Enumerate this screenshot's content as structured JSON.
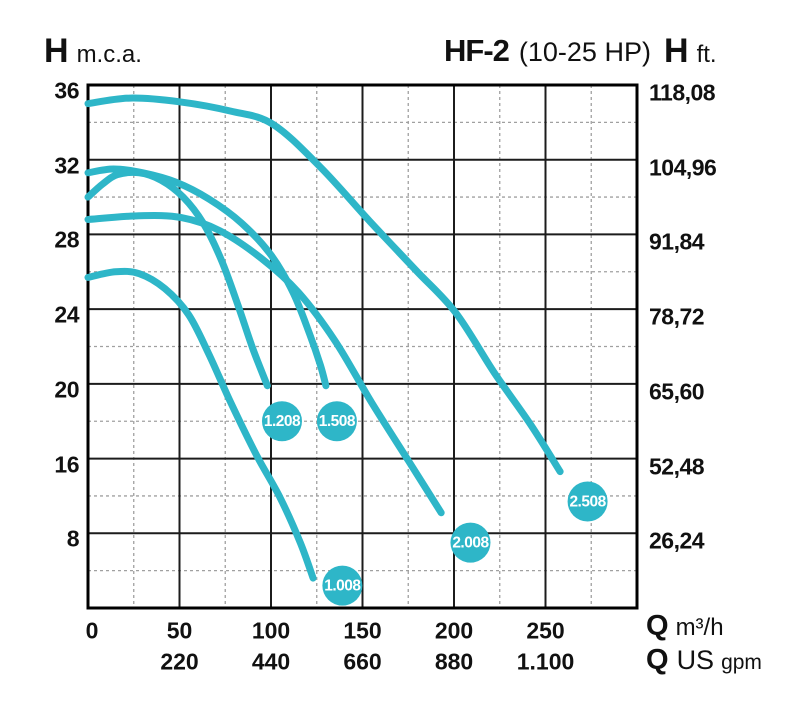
{
  "header": {
    "left_axis": {
      "symbol": "H",
      "unit": "m.c.a."
    },
    "title": {
      "model": "HF-2",
      "power": "(10-25 HP)"
    },
    "right_axis": {
      "symbol": "H",
      "unit": "ft."
    }
  },
  "footer": {
    "flow_m3h": {
      "symbol": "Q",
      "unit": "m³/h"
    },
    "flow_gpm": {
      "symbol": "Q",
      "unit_big": "US",
      "unit_small": "gpm"
    }
  },
  "colors": {
    "curve": "#2eb6c8",
    "bubble_fill": "#2eb6c8",
    "bubble_text": "#ffffff",
    "grid_major": "#1c1c1c",
    "grid_minor": "#a0a0a0",
    "border": "#000000",
    "text": "#111111",
    "background": "#ffffff"
  },
  "chart_data": {
    "type": "line",
    "title": "HF-2 (10-25 HP)",
    "x_axis": {
      "label": "Q m³/h",
      "min": 0,
      "max": 300,
      "major_step": 50,
      "minor_step": 25,
      "tick_values": [
        0,
        50,
        100,
        150,
        200,
        250
      ],
      "tick_labels": [
        "0",
        "50",
        "100",
        "150",
        "200",
        "250"
      ]
    },
    "x_axis_secondary": {
      "label": "Q US gpm",
      "tick_labels": [
        "220",
        "440",
        "660",
        "880",
        "1.100"
      ],
      "at_m3h": [
        50,
        100,
        150,
        200,
        250
      ]
    },
    "y_axis_left": {
      "label": "H m.c.a.",
      "top_value": 36,
      "bottom_value": 8,
      "rows": 7,
      "tick_labels": [
        "36",
        "32",
        "28",
        "24",
        "20",
        "16",
        "8"
      ]
    },
    "y_axis_right": {
      "label": "H ft.",
      "tick_labels": [
        "118,08",
        "104,96",
        "91,84",
        "78,72",
        "65,60",
        "52,48",
        "26,24"
      ]
    },
    "grid": {
      "legend": "off",
      "minor_style": "dashed"
    },
    "series": [
      {
        "name": "1.208",
        "bubble": {
          "q": 106,
          "h": 18.0
        },
        "points": [
          [
            0,
            30.0
          ],
          [
            8,
            30.7
          ],
          [
            16,
            31.2
          ],
          [
            28,
            31.3
          ],
          [
            40,
            30.9
          ],
          [
            52,
            30.0
          ],
          [
            63,
            28.6
          ],
          [
            73,
            26.6
          ],
          [
            82,
            24.2
          ],
          [
            90,
            21.9
          ],
          [
            98,
            19.9
          ]
        ]
      },
      {
        "name": "1.508",
        "bubble": {
          "q": 136,
          "h": 18.0
        },
        "points": [
          [
            0,
            31.3
          ],
          [
            14,
            31.5
          ],
          [
            30,
            31.3
          ],
          [
            48,
            30.8
          ],
          [
            66,
            29.9
          ],
          [
            84,
            28.6
          ],
          [
            100,
            26.9
          ],
          [
            112,
            24.9
          ],
          [
            121,
            22.7
          ],
          [
            127,
            21.0
          ],
          [
            130,
            19.9
          ]
        ]
      },
      {
        "name": "1.008",
        "bubble": {
          "q": 139,
          "h": 9.2
        },
        "points": [
          [
            0,
            25.7
          ],
          [
            15,
            26.0
          ],
          [
            28,
            25.9
          ],
          [
            42,
            25.1
          ],
          [
            55,
            23.7
          ],
          [
            66,
            21.6
          ],
          [
            78,
            19.0
          ],
          [
            92,
            16.2
          ],
          [
            105,
            13.9
          ],
          [
            116,
            11.5
          ],
          [
            123,
            9.6
          ]
        ]
      },
      {
        "name": "2.008",
        "bubble": {
          "q": 209,
          "h": 11.5
        },
        "points": [
          [
            0,
            28.8
          ],
          [
            28,
            29.0
          ],
          [
            51,
            28.9
          ],
          [
            72,
            28.2
          ],
          [
            95,
            26.7
          ],
          [
            115,
            24.9
          ],
          [
            135,
            22.3
          ],
          [
            155,
            19.0
          ],
          [
            175,
            15.9
          ],
          [
            193,
            13.1
          ]
        ]
      },
      {
        "name": "2.508",
        "bubble": {
          "q": 273,
          "h": 13.7
        },
        "points": [
          [
            0,
            35.0
          ],
          [
            23,
            35.3
          ],
          [
            50,
            35.1
          ],
          [
            78,
            34.6
          ],
          [
            101,
            33.9
          ],
          [
            127,
            31.6
          ],
          [
            154,
            28.7
          ],
          [
            179,
            26.1
          ],
          [
            201,
            23.8
          ],
          [
            222,
            20.6
          ],
          [
            242,
            17.8
          ],
          [
            258,
            15.3
          ]
        ]
      }
    ]
  }
}
